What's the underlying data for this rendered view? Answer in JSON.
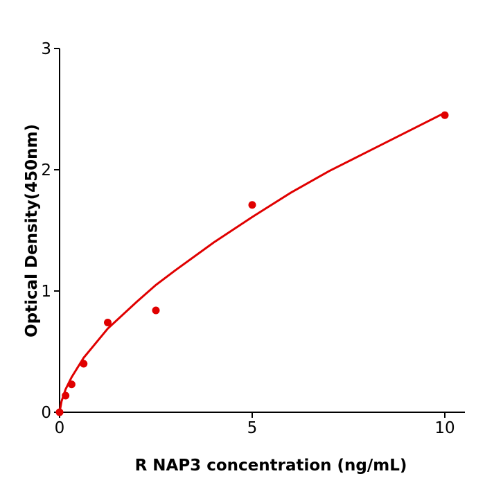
{
  "chart_data": {
    "type": "scatter",
    "title": "",
    "xlabel": "R  NAP3 concentration (ng/mL)",
    "ylabel": "Optical Density(450nm)",
    "xlim": [
      0,
      10.5
    ],
    "ylim": [
      0,
      3
    ],
    "xticks": [
      "0",
      "5",
      "10"
    ],
    "yticks": [
      "0",
      "1",
      "2",
      "3"
    ],
    "grid": false,
    "color": "#e00000",
    "points": {
      "x": [
        0,
        0.156,
        0.3125,
        0.625,
        1.25,
        2.5,
        5,
        10
      ],
      "y": [
        0,
        0.137,
        0.23,
        0.4,
        0.74,
        0.84,
        1.71,
        2.45
      ]
    },
    "fit_curve": {
      "x": [
        0,
        0.05,
        0.156,
        0.3125,
        0.625,
        1.25,
        2,
        2.5,
        3,
        4,
        5,
        6,
        7,
        8,
        9,
        10
      ],
      "y": [
        0,
        0.09,
        0.19,
        0.29,
        0.45,
        0.69,
        0.91,
        1.05,
        1.17,
        1.4,
        1.61,
        1.81,
        1.99,
        2.15,
        2.31,
        2.47
      ]
    }
  }
}
